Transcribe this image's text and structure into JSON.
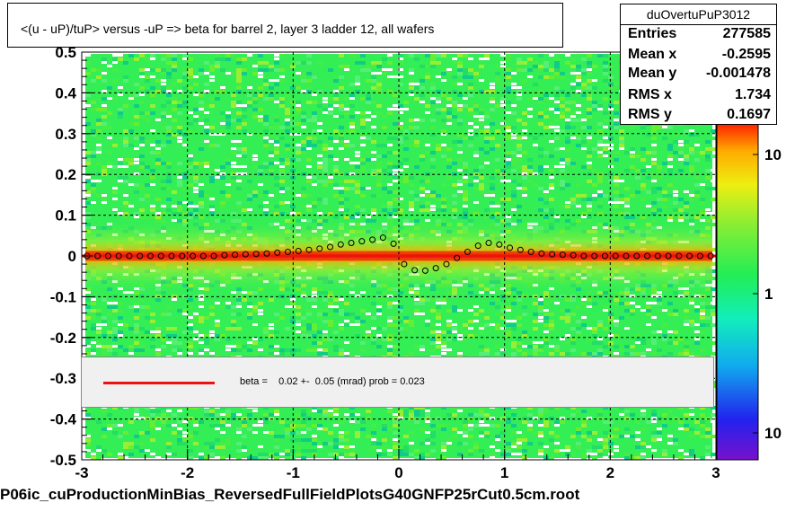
{
  "title": "<(u - uP)/tuP> versus  -uP => beta for barrel 2, layer 3 ladder 12, all wafers",
  "stats": {
    "name": "duOvertuPuP3012",
    "rows": [
      {
        "label": "Entries",
        "value": "277585"
      },
      {
        "label": "Mean x",
        "value": "-0.2595"
      },
      {
        "label": "Mean y",
        "value": "-0.001478"
      },
      {
        "label": "RMS x",
        "value": "1.734"
      },
      {
        "label": "RMS y",
        "value": "0.1697"
      }
    ]
  },
  "legend": {
    "text": "beta =    0.02 +-  0.05 (mrad) prob = 0.023",
    "line_color": "#ee1111"
  },
  "footer": "P06ic_cuProductionMinBias_ReversedFullFieldPlotsG40GNFP25rCut0.5cm.root",
  "colors": {
    "background_green": "#33ee55",
    "core_red": "#ee2200",
    "fit_line": "#ee1111",
    "profile_points": "#000000"
  },
  "chart_data": {
    "type": "heatmap",
    "xlim": [
      -3,
      3
    ],
    "ylim": [
      -0.5,
      0.5
    ],
    "x_ticks": [
      "-3",
      "-2",
      "-1",
      "0",
      "1",
      "2",
      "3"
    ],
    "y_ticks": [
      "-0.5",
      "-0.4",
      "-0.3",
      "-0.2",
      "-0.1",
      "0",
      "0.1",
      "0.2",
      "0.3",
      "0.4",
      "0.5"
    ],
    "x_tick_values": [
      -3,
      -2,
      -1,
      0,
      1,
      2,
      3
    ],
    "y_tick_values": [
      -0.5,
      -0.4,
      -0.3,
      -0.2,
      -0.1,
      0,
      0.1,
      0.2,
      0.3,
      0.4,
      0.5
    ],
    "grid": true,
    "colorbar_labels": [
      "10",
      "1",
      "10"
    ],
    "fit_line": {
      "slope": 0.0,
      "intercept": 0.0
    },
    "profile": {
      "x": [
        -2.95,
        -2.85,
        -2.75,
        -2.65,
        -2.55,
        -2.45,
        -2.35,
        -2.25,
        -2.15,
        -2.05,
        -1.95,
        -1.85,
        -1.75,
        -1.65,
        -1.55,
        -1.45,
        -1.35,
        -1.25,
        -1.15,
        -1.05,
        -0.95,
        -0.85,
        -0.75,
        -0.65,
        -0.55,
        -0.45,
        -0.35,
        -0.25,
        -0.15,
        -0.05,
        0.05,
        0.15,
        0.25,
        0.35,
        0.45,
        0.55,
        0.65,
        0.75,
        0.85,
        0.95,
        1.05,
        1.15,
        1.25,
        1.35,
        1.45,
        1.55,
        1.65,
        1.75,
        1.85,
        1.95,
        2.05,
        2.15,
        2.25,
        2.35,
        2.45,
        2.55,
        2.65,
        2.75,
        2.85,
        2.95
      ],
      "y": [
        0.0,
        0.0,
        0.0,
        0.0,
        0.0,
        0.0,
        0.0,
        0.0,
        0.0,
        0.0,
        0.0,
        0.0,
        0.0,
        0.002,
        0.003,
        0.004,
        0.005,
        0.006,
        0.008,
        0.01,
        0.012,
        0.015,
        0.018,
        0.022,
        0.028,
        0.032,
        0.036,
        0.04,
        0.045,
        0.03,
        -0.02,
        -0.035,
        -0.036,
        -0.03,
        -0.02,
        -0.005,
        0.01,
        0.025,
        0.032,
        0.028,
        0.02,
        0.015,
        0.01,
        0.006,
        0.004,
        0.003,
        0.002,
        0.0,
        0.0,
        0.0,
        0.0,
        0.0,
        0.0,
        0.0,
        0.0,
        0.0,
        0.0,
        0.0,
        0.0,
        0.0
      ]
    }
  }
}
